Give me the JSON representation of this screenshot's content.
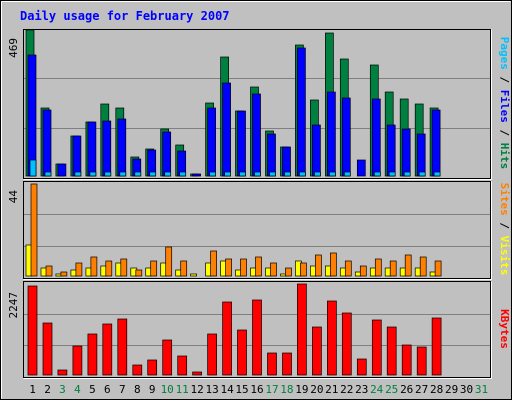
{
  "colors": {
    "background": "#c0c0c0",
    "title": "#0000ff",
    "hits": "#008040",
    "files": "#0000ff",
    "pages": "#00c0ff",
    "visits": "#ffff00",
    "sites": "#ff8000",
    "kbytes": "#ff0000",
    "weekday": "#000000",
    "weekend": "#008040"
  },
  "chart_data": {
    "type": "bar",
    "title": "Daily usage for February 2007",
    "days": [
      "1",
      "2",
      "3",
      "4",
      "5",
      "6",
      "7",
      "8",
      "9",
      "10",
      "11",
      "12",
      "13",
      "14",
      "15",
      "16",
      "17",
      "18",
      "19",
      "20",
      "21",
      "22",
      "23",
      "24",
      "25",
      "26",
      "27",
      "28",
      "29",
      "30",
      "31"
    ],
    "weekend_days": [
      "3",
      "4",
      "10",
      "11",
      "17",
      "18",
      "24",
      "25",
      "31"
    ],
    "panels": [
      {
        "id": "hits_files_pages",
        "max_label": "469",
        "max": 469,
        "legend": [
          {
            "text": "Pages",
            "color_key": "pages"
          },
          {
            "text": " / ",
            "color_key": "weekday"
          },
          {
            "text": "Files",
            "color_key": "files"
          },
          {
            "text": " / ",
            "color_key": "weekday"
          },
          {
            "text": "Hits",
            "color_key": "hits"
          }
        ],
        "series": [
          {
            "name": "Hits",
            "color_key": "hits",
            "values": [
              469,
              219,
              38,
              130,
              172,
              232,
              219,
              62,
              86,
              150,
              98,
              6,
              235,
              381,
              210,
              285,
              145,
              93,
              420,
              243,
              458,
              375,
              0,
              355,
              271,
              248,
              231,
              219,
              null,
              null,
              null
            ]
          },
          {
            "name": "Files",
            "color_key": "files",
            "values": [
              390,
              211,
              38,
              129,
              172,
              176,
              182,
              56,
              84,
              140,
              81,
              5,
              218,
              299,
              210,
              262,
              136,
              92,
              410,
              165,
              270,
              251,
              53,
              248,
              165,
              150,
              135,
              211,
              null,
              null,
              null
            ]
          },
          {
            "name": "Pages",
            "color_key": "pages",
            "values": [
              53,
              13,
              0,
              13,
              13,
              13,
              13,
              13,
              13,
              13,
              13,
              0,
              13,
              13,
              13,
              13,
              13,
              13,
              13,
              13,
              13,
              13,
              0,
              13,
              13,
              13,
              13,
              13,
              null,
              null,
              null
            ]
          }
        ]
      },
      {
        "id": "sites_visits",
        "max_label": "44",
        "max": 44,
        "legend": [
          {
            "text": "Sites",
            "color_key": "sites"
          },
          {
            "text": " / ",
            "color_key": "weekday"
          },
          {
            "text": "Visits",
            "color_key": "visits"
          }
        ],
        "series": [
          {
            "name": "Visits",
            "color_key": "visits",
            "values": [
              15,
              4,
              1,
              3,
              4,
              5,
              6,
              4,
              4,
              6,
              3,
              1,
              6,
              7,
              3,
              4,
              4,
              1,
              7,
              5,
              5,
              4,
              2,
              4,
              4,
              4,
              4,
              2,
              null,
              null,
              null
            ]
          },
          {
            "name": "Sites",
            "color_key": "sites",
            "values": [
              44,
              5,
              2,
              6,
              9,
              7,
              8,
              3,
              7,
              14,
              7,
              0,
              12,
              8,
              8,
              9,
              6,
              4,
              6,
              10,
              11,
              7,
              5,
              8,
              7,
              10,
              9,
              7,
              null,
              null,
              null
            ]
          }
        ]
      },
      {
        "id": "kbytes",
        "max_label": "2247",
        "max": 2247,
        "legend": [
          {
            "text": "KBytes",
            "color_key": "kbytes"
          }
        ],
        "series": [
          {
            "name": "KBytes",
            "color_key": "kbytes",
            "values": [
              2199,
              1295,
              126,
              705,
              1024,
              1256,
              1374,
              245,
              377,
              856,
              457,
              71,
              1016,
              1810,
              1116,
              1863,
              551,
              540,
              2247,
              1177,
              1824,
              1541,
              387,
              1367,
              1184,
              751,
              693,
              1402,
              null,
              null,
              null
            ]
          }
        ]
      }
    ]
  }
}
